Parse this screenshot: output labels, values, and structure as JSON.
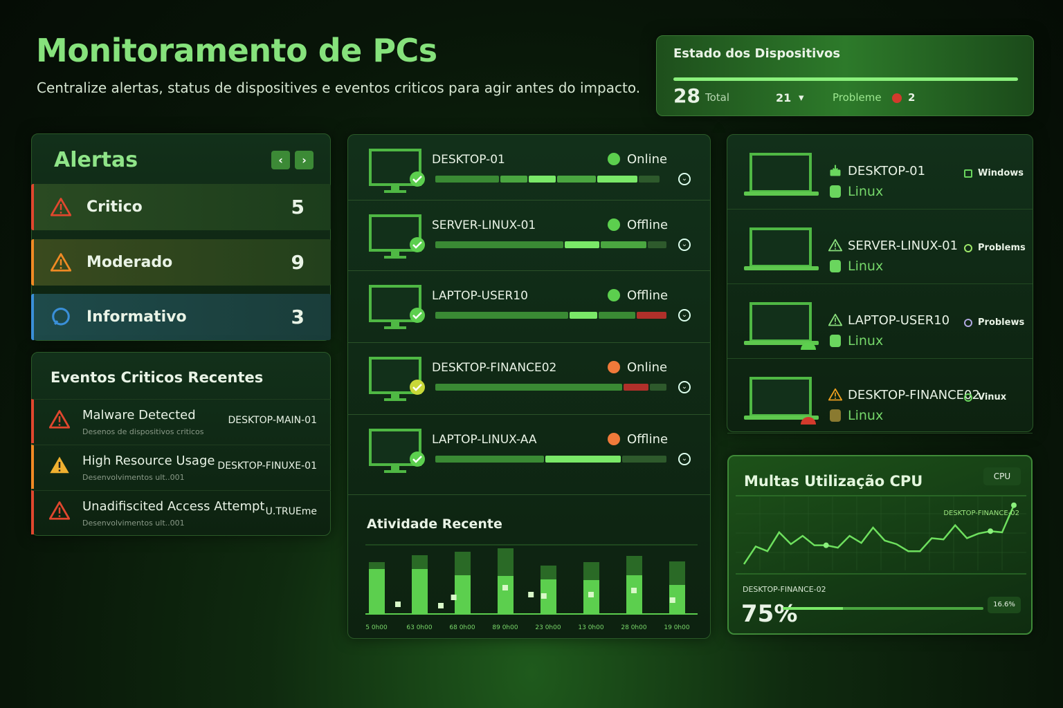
{
  "header": {
    "title": "Monitoramento de PCs",
    "subtitle": "Centralize alertas, status de dispositives e eventos criticos para agir antes do impacto."
  },
  "status_card": {
    "title": "Estado dos Dispositivos",
    "total_value": "28",
    "total_label": "Total",
    "online_value": "21",
    "problem_label": "Probleme",
    "problem_value": "2",
    "problem_color": "#d23a2c"
  },
  "alerts": {
    "title": "Alertas",
    "prev_label": "‹",
    "next_label": "›",
    "items": [
      {
        "label": "Critico",
        "count": "5",
        "color": "#e0472e",
        "icon": "warning-icon"
      },
      {
        "label": "Moderado",
        "count": "9",
        "color": "#f08a24",
        "icon": "warning-icon"
      },
      {
        "label": "Informativo",
        "count": "3",
        "color": "#3a8fd8",
        "icon": "info-chat-icon"
      }
    ]
  },
  "events": {
    "title": "Eventos Criticos Recentes",
    "items": [
      {
        "title": "Malware Detected",
        "desc": "Desenos de dispositivos criticos",
        "device": "DESKTOP-MAIN-01",
        "color": "#e0472e"
      },
      {
        "title": "High Resource Usage",
        "desc": "Desenvolvimentos ult..001",
        "device": "DESKTOP-FINUXE-01",
        "color": "#f0b030"
      },
      {
        "title": "Unadifiscited Access Attempt",
        "desc": "Desenvolvimentos ult..001",
        "device": "U.TRUEme",
        "color": "#e0472e"
      }
    ]
  },
  "devices": [
    {
      "name": "DESKTOP-01",
      "status": "Online",
      "status_color": "#5ccf4e",
      "badge": "check",
      "segments": [
        [
          0.28,
          1
        ],
        [
          0.12,
          2
        ],
        [
          0.12,
          3
        ],
        [
          0.17,
          2
        ],
        [
          0.18,
          3
        ],
        [
          0.09,
          0
        ]
      ]
    },
    {
      "name": "SERVER-LINUX-01",
      "status": "Offline",
      "status_color": "#5ccf4e",
      "badge": "info",
      "segments": [
        [
          0.56,
          1
        ],
        [
          0.15,
          3
        ],
        [
          0.2,
          2
        ],
        [
          0.08,
          0
        ]
      ]
    },
    {
      "name": "LAPTOP-USER10",
      "status": "Offline",
      "status_color": "#5ccf4e",
      "badge": "check",
      "segments": [
        [
          0.58,
          1
        ],
        [
          0.12,
          3
        ],
        [
          0.16,
          1
        ],
        [
          0.13,
          4
        ]
      ]
    },
    {
      "name": "DESKTOP-FINANCE02",
      "status": "Online",
      "status_color": "#f07a3a",
      "badge": "check-yellow",
      "segments": [
        [
          0.81,
          1
        ],
        [
          0.11,
          4
        ],
        [
          0.07,
          0
        ]
      ]
    },
    {
      "name": "LAPTOP-LINUX-AA",
      "status": "Offline",
      "status_color": "#f07a3a",
      "badge": "lock",
      "segments": [
        [
          0.47,
          1
        ],
        [
          0.33,
          3
        ],
        [
          0.19,
          0
        ]
      ]
    }
  ],
  "segment_colors": [
    "#2e5a2c",
    "#3a8a34",
    "#4aa640",
    "#7ae868",
    "#b0302a"
  ],
  "activity": {
    "title": "Atividade Recente"
  },
  "chart_data": [
    {
      "type": "bar",
      "title": "Atividade Recente",
      "categories": [
        "5 0h00",
        "63 0h00",
        "68 0h00",
        "89 0h00",
        "23 0h00",
        "13 0h00",
        "28 0h00",
        "19 0h00"
      ],
      "series": [
        {
          "values": [
            65,
            65,
            56,
            55,
            50,
            49,
            56,
            42
          ]
        },
        {
          "values": [
            10,
            20,
            34,
            40,
            20,
            26,
            28,
            34
          ]
        }
      ],
      "points": {
        "x": [
          0.5,
          1.5,
          1.8,
          3.0,
          3.6,
          3.9,
          5.0,
          6.0,
          6.9
        ],
        "y": [
          14,
          12,
          24,
          38,
          28,
          26,
          28,
          34,
          20
        ]
      },
      "ylim": [
        0,
        100
      ],
      "grid": false
    },
    {
      "type": "line",
      "title": "Multas Utilização CPU",
      "series": [
        {
          "values": [
            10,
            25,
            21,
            37,
            27,
            34,
            26,
            26,
            24,
            34,
            28,
            41,
            30,
            27,
            21,
            21,
            32,
            31,
            43,
            32,
            36,
            38,
            37,
            60
          ]
        }
      ],
      "ylim": [
        0,
        100
      ],
      "grid": true,
      "annotation": "DESKTOP-FINANCE-02"
    }
  ],
  "right_devices": [
    {
      "name": "DESKTOP-01",
      "os": "Linux",
      "tag": "Windows",
      "icon": "download-icon",
      "tag_color": "#6ad65e",
      "badge": ""
    },
    {
      "name": "SERVER-LINUX-01",
      "os": "Linux",
      "tag": "Problems",
      "icon": "warning-icon",
      "tag_color": "#9ee86a",
      "badge": ""
    },
    {
      "name": "LAPTOP-USER10",
      "os": "Linux",
      "tag": "Problews",
      "icon": "warning-icon",
      "tag_color": "#b0a8e0",
      "badge": "#5ccf4e"
    },
    {
      "name": "DESKTOP-FINANCE02",
      "os": "Linux",
      "tag": "Vinux",
      "icon": "warning-icon",
      "tag_color": "#6ad65e",
      "badge": "#d23a2c"
    }
  ],
  "cpu": {
    "title": "Multas Utilização CPU",
    "badge": "CPU",
    "series_label": "DESKTOP-FINANCE-02",
    "device": "DESKTOP-FINANCE-02",
    "value": "75%",
    "usage_percent": 75,
    "secondary": "16.6%"
  }
}
